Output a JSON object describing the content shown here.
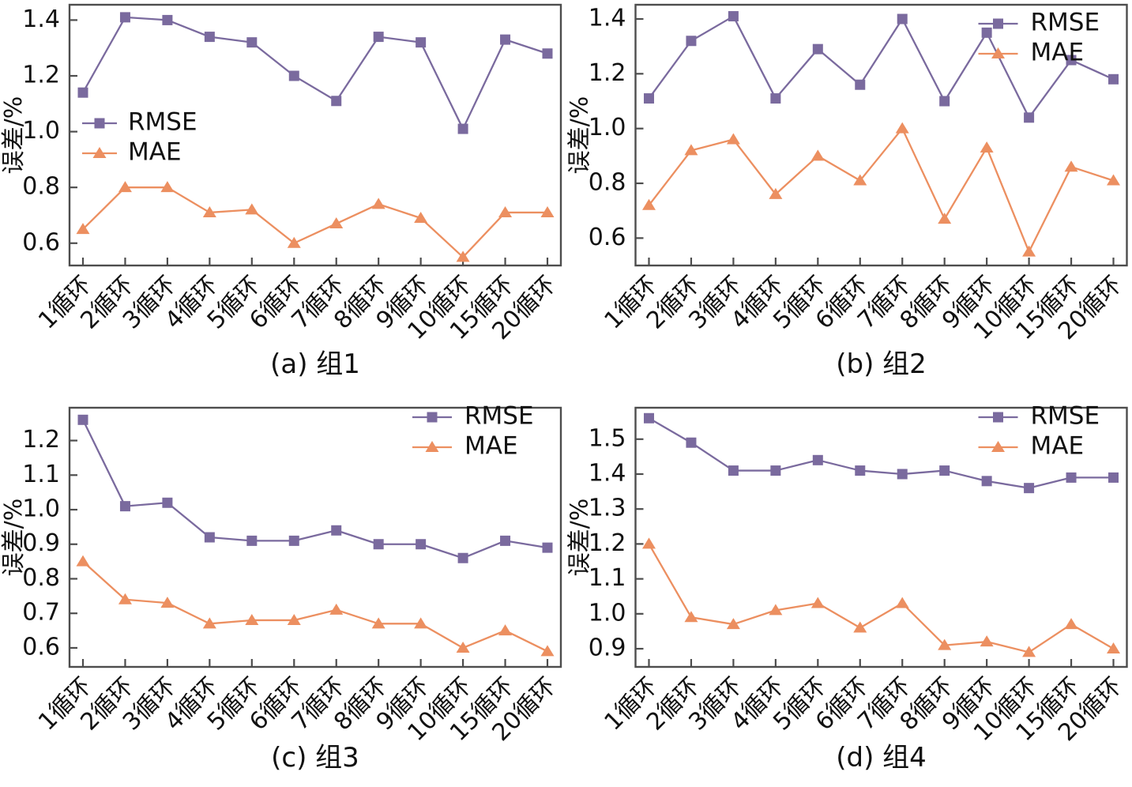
{
  "figure": {
    "background": "#ffffff",
    "axis_color": "#4d4d4d",
    "text_color": "#111111"
  },
  "chart_data": [
    {
      "id": "a",
      "type": "line",
      "caption": "(a) 组1",
      "ylabel": "误差/%",
      "categories": [
        "1循环",
        "2循环",
        "3循环",
        "4循环",
        "5循环",
        "6循环",
        "7循环",
        "8循环",
        "9循环",
        "10循环",
        "15循环",
        "20循环"
      ],
      "yticks": [
        "0.6",
        "0.8",
        "1.0",
        "1.2",
        "1.4"
      ],
      "ylim": [
        0.52,
        1.455
      ],
      "grid": false,
      "legend_position": "left-middle",
      "series": [
        {
          "name": "RMSE",
          "marker": "square",
          "color": "#7A6A9E",
          "values": [
            1.14,
            1.41,
            1.4,
            1.34,
            1.32,
            1.2,
            1.11,
            1.34,
            1.32,
            1.01,
            1.33,
            1.28
          ]
        },
        {
          "name": "MAE",
          "marker": "triangle",
          "color": "#EC8F60",
          "values": [
            0.65,
            0.8,
            0.8,
            0.71,
            0.72,
            0.6,
            0.67,
            0.74,
            0.69,
            0.55,
            0.71,
            0.71
          ]
        }
      ]
    },
    {
      "id": "b",
      "type": "line",
      "caption": "(b) 组2",
      "ylabel": "误差/%",
      "categories": [
        "1循环",
        "2循环",
        "3循环",
        "4循环",
        "5循环",
        "6循环",
        "7循环",
        "8循环",
        "9循环",
        "10循环",
        "15循环",
        "20循环"
      ],
      "yticks": [
        "0.6",
        "0.8",
        "1.0",
        "1.2",
        "1.4"
      ],
      "ylim": [
        0.5,
        1.452
      ],
      "grid": false,
      "legend_position": "top-right",
      "series": [
        {
          "name": "RMSE",
          "marker": "square",
          "color": "#7A6A9E",
          "values": [
            1.11,
            1.32,
            1.41,
            1.11,
            1.29,
            1.16,
            1.4,
            1.1,
            1.35,
            1.04,
            1.25,
            1.18
          ]
        },
        {
          "name": "MAE",
          "marker": "triangle",
          "color": "#EC8F60",
          "values": [
            0.72,
            0.92,
            0.96,
            0.76,
            0.9,
            0.81,
            1.0,
            0.67,
            0.93,
            0.55,
            0.86,
            0.81
          ]
        }
      ]
    },
    {
      "id": "c",
      "type": "line",
      "caption": "(c) 组3",
      "ylabel": "误差/%",
      "categories": [
        "1循环",
        "2循环",
        "3循环",
        "4循环",
        "5循环",
        "6循环",
        "7循环",
        "8循环",
        "9循环",
        "10循环",
        "15循环",
        "20循环"
      ],
      "yticks": [
        "0.6",
        "0.7",
        "0.8",
        "0.9",
        "1.0",
        "1.1",
        "1.2"
      ],
      "ylim": [
        0.545,
        1.295
      ],
      "grid": false,
      "legend_position": "top-right",
      "series": [
        {
          "name": "RMSE",
          "marker": "square",
          "color": "#7A6A9E",
          "values": [
            1.26,
            1.01,
            1.02,
            0.92,
            0.91,
            0.91,
            0.94,
            0.9,
            0.9,
            0.86,
            0.91,
            0.89
          ]
        },
        {
          "name": "MAE",
          "marker": "triangle",
          "color": "#EC8F60",
          "values": [
            0.85,
            0.74,
            0.73,
            0.67,
            0.68,
            0.68,
            0.71,
            0.67,
            0.67,
            0.6,
            0.65,
            0.59
          ]
        }
      ]
    },
    {
      "id": "d",
      "type": "line",
      "caption": "(d) 组4",
      "ylabel": "误差/%",
      "categories": [
        "1循环",
        "2循环",
        "3循环",
        "4循环",
        "5循环",
        "6循环",
        "7循环",
        "8循环",
        "9循环",
        "10循环",
        "15循环",
        "20循环"
      ],
      "yticks": [
        "0.9",
        "1.0",
        "1.1",
        "1.2",
        "1.3",
        "1.4",
        "1.5"
      ],
      "ylim": [
        0.848,
        1.59
      ],
      "grid": false,
      "legend_position": "top-right",
      "series": [
        {
          "name": "RMSE",
          "marker": "square",
          "color": "#7A6A9E",
          "values": [
            1.56,
            1.49,
            1.41,
            1.41,
            1.44,
            1.41,
            1.4,
            1.41,
            1.38,
            1.36,
            1.39,
            1.39
          ]
        },
        {
          "name": "MAE",
          "marker": "triangle",
          "color": "#EC8F60",
          "values": [
            1.2,
            0.99,
            0.97,
            1.01,
            1.03,
            0.96,
            1.03,
            0.91,
            0.92,
            0.89,
            0.97,
            0.9
          ]
        }
      ]
    }
  ]
}
